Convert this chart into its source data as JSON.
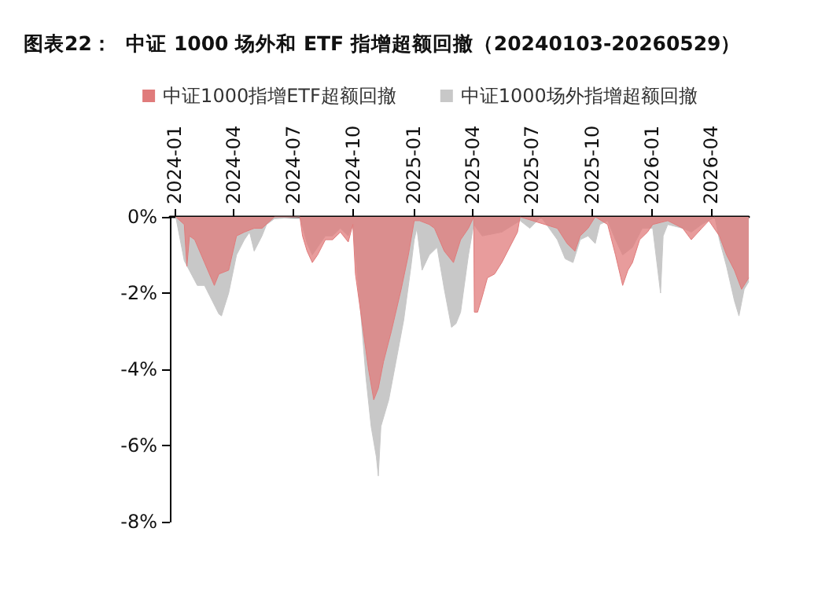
{
  "chart_data": {
    "type": "area",
    "title": "图表22：  中证 1000 场外和 ETF 指增超额回撤（20240103-20260529）",
    "legend": "top",
    "xlim": [
      "2023-12-25",
      "2026-05-29"
    ],
    "xticks": [
      "2024-01",
      "2024-04",
      "2024-07",
      "2024-10",
      "2025-01",
      "2025-04",
      "2025-07",
      "2025-10",
      "2026-01",
      "2026-04"
    ],
    "ylim": [
      -8,
      0
    ],
    "yticks": [
      {
        "value": 0,
        "label": "0%"
      },
      {
        "value": -2,
        "label": "-2%"
      },
      {
        "value": -4,
        "label": "-4%"
      },
      {
        "value": -6,
        "label": "-6%"
      },
      {
        "value": -8,
        "label": "-8%"
      }
    ],
    "series": [
      {
        "name": "中证1000指增ETF超额回撤",
        "color": "#e07b7b",
        "x": [
          "2024-01-03",
          "2024-01-16",
          "2024-01-20",
          "2024-01-24",
          "2024-02-01",
          "2024-02-16",
          "2024-03-02",
          "2024-03-09",
          "2024-03-24",
          "2024-04-05",
          "2024-04-17",
          "2024-05-02",
          "2024-05-14",
          "2024-06-02",
          "2024-07-11",
          "2024-07-15",
          "2024-07-22",
          "2024-07-30",
          "2024-08-07",
          "2024-08-19",
          "2024-08-30",
          "2024-09-11",
          "2024-09-23",
          "2024-09-30",
          "2024-10-04",
          "2024-10-16",
          "2024-10-24",
          "2024-11-01",
          "2024-11-08",
          "2024-11-16",
          "2024-11-28",
          "2024-12-13",
          "2024-12-24",
          "2025-01-02",
          "2025-01-10",
          "2025-01-25",
          "2025-02-02",
          "2025-02-17",
          "2025-03-03",
          "2025-03-14",
          "2025-03-26",
          "2025-04-03",
          "2025-04-04",
          "2025-04-09",
          "2025-04-16",
          "2025-04-24",
          "2025-05-05",
          "2025-05-16",
          "2025-05-28",
          "2025-06-09",
          "2025-06-13",
          "2025-08-09",
          "2025-08-24",
          "2025-09-05",
          "2025-09-13",
          "2025-09-25",
          "2025-10-06",
          "2025-10-25",
          "2025-11-06",
          "2025-11-17",
          "2025-11-25",
          "2025-12-02",
          "2025-12-13",
          "2025-12-25",
          "2026-01-02",
          "2026-01-25",
          "2026-02-17",
          "2026-03-02",
          "2026-03-18",
          "2026-03-29",
          "2026-04-14",
          "2026-04-25",
          "2026-05-07",
          "2026-05-18",
          "2026-05-29"
        ],
        "values": [
          0,
          -0.2,
          -1.3,
          -0.5,
          -0.6,
          -1.2,
          -1.8,
          -1.5,
          -1.4,
          -0.5,
          -0.4,
          -0.3,
          -0.3,
          0,
          0,
          -0.5,
          -0.9,
          -1.2,
          -1.0,
          -0.6,
          -0.6,
          -0.4,
          -0.66,
          -0.2,
          -1.5,
          -3.0,
          -4.0,
          -4.8,
          -4.5,
          -3.8,
          -3.0,
          -1.9,
          -1.0,
          -0.1,
          -0.1,
          -0.2,
          -0.3,
          -0.9,
          -1.2,
          -0.6,
          -0.3,
          0,
          -2.5,
          -2.5,
          -2.1,
          -1.6,
          -1.5,
          -1.2,
          -0.8,
          -0.4,
          0,
          -0.3,
          -0.7,
          -0.9,
          -0.5,
          -0.3,
          0,
          -0.2,
          -1.0,
          -1.8,
          -1.4,
          -1.2,
          -0.6,
          -0.4,
          -0.2,
          -0.1,
          -0.3,
          -0.6,
          -0.3,
          -0.1,
          -0.5,
          -1.0,
          -1.4,
          -1.9,
          -1.6
        ]
      },
      {
        "name": "中证1000场外指增超额回撤",
        "color": "#c8c8c8",
        "x": [
          "2024-01-03",
          "2024-01-16",
          "2024-02-05",
          "2024-02-16",
          "2024-03-09",
          "2024-03-13",
          "2024-03-24",
          "2024-04-05",
          "2024-04-17",
          "2024-04-25",
          "2024-05-02",
          "2024-05-14",
          "2024-05-21",
          "2024-06-02",
          "2024-07-11",
          "2024-07-22",
          "2024-07-30",
          "2024-08-07",
          "2024-08-19",
          "2024-08-30",
          "2024-09-11",
          "2024-09-23",
          "2024-09-30",
          "2024-10-04",
          "2024-10-12",
          "2024-10-20",
          "2024-10-28",
          "2024-11-05",
          "2024-11-08",
          "2024-11-12",
          "2024-11-24",
          "2024-12-05",
          "2024-12-17",
          "2024-12-28",
          "2025-01-02",
          "2025-01-06",
          "2025-01-14",
          "2025-01-25",
          "2025-02-06",
          "2025-02-17",
          "2025-02-28",
          "2025-03-07",
          "2025-03-14",
          "2025-03-26",
          "2025-04-03",
          "2025-04-16",
          "2025-05-16",
          "2025-06-13",
          "2025-06-28",
          "2025-07-15",
          "2025-08-09",
          "2025-08-21",
          "2025-09-02",
          "2025-09-13",
          "2025-09-25",
          "2025-10-06",
          "2025-10-13",
          "2025-10-25",
          "2025-11-06",
          "2025-11-17",
          "2025-12-02",
          "2025-12-17",
          "2026-01-02",
          "2026-01-14",
          "2026-01-18",
          "2026-01-25",
          "2026-02-17",
          "2026-03-02",
          "2026-03-18",
          "2026-04-07",
          "2026-04-14",
          "2026-04-25",
          "2026-05-07",
          "2026-05-14",
          "2026-05-22",
          "2026-05-29"
        ],
        "values": [
          0,
          -1.15,
          -1.8,
          -1.8,
          -2.55,
          -2.6,
          -2.0,
          -1.0,
          -0.6,
          -0.4,
          -0.9,
          -0.5,
          -0.2,
          -0.05,
          0,
          -0.7,
          -1.0,
          -0.8,
          -0.5,
          -0.5,
          -0.3,
          -0.5,
          -0.2,
          -1.0,
          -2.5,
          -4.2,
          -5.5,
          -6.3,
          -6.8,
          -5.5,
          -4.8,
          -3.8,
          -2.7,
          -1.3,
          -0.6,
          -0.3,
          -1.4,
          -1.0,
          -0.8,
          -1.9,
          -2.9,
          -2.8,
          -2.5,
          -1.0,
          -0.2,
          -0.5,
          -0.4,
          -0.1,
          -0.3,
          0,
          -0.6,
          -1.1,
          -1.2,
          -0.6,
          -0.5,
          -0.7,
          -0.2,
          -0.1,
          -0.6,
          -1.0,
          -0.8,
          -0.3,
          -0.3,
          -2.0,
          -0.5,
          -0.2,
          -0.3,
          -0.4,
          -0.2,
          0,
          -0.6,
          -1.3,
          -2.2,
          -2.6,
          -1.9,
          -1.7
        ]
      }
    ]
  }
}
